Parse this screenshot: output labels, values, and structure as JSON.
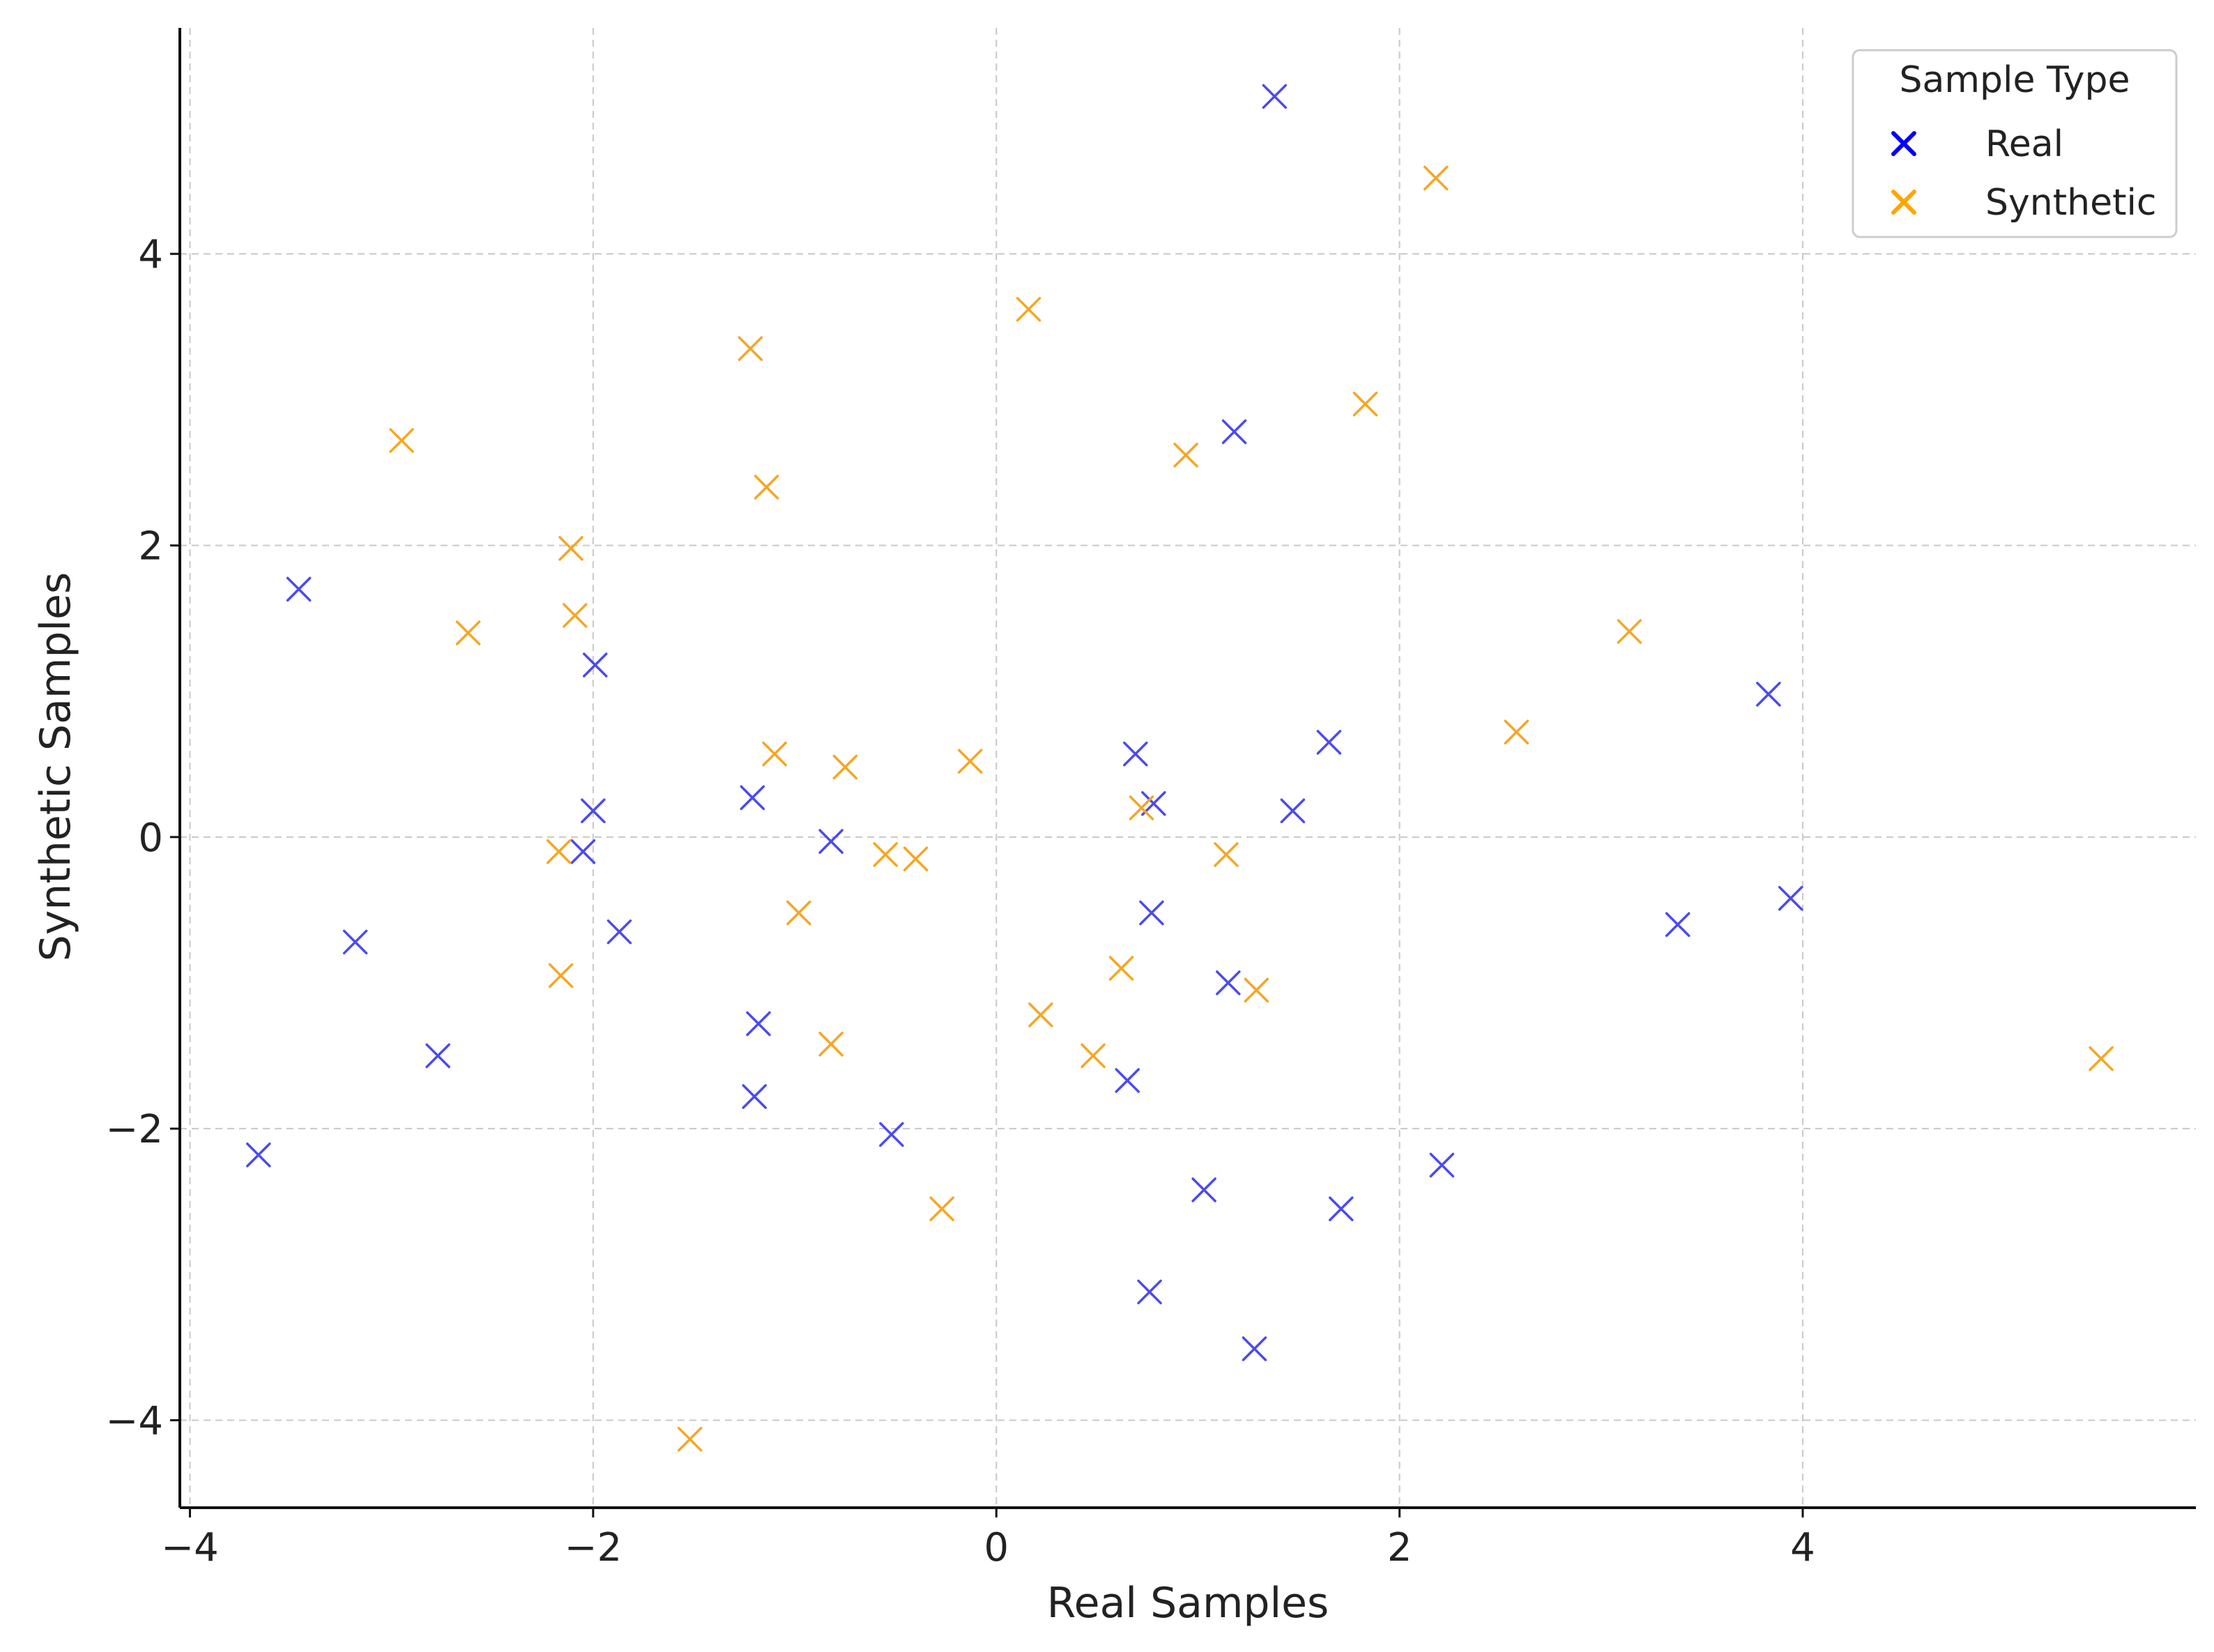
{
  "chart_data": {
    "type": "scatter",
    "title": "",
    "xlabel": "Real Samples",
    "ylabel": "Synthetic Samples",
    "xlim": [
      -4.05,
      5.95
    ],
    "ylim": [
      -4.6,
      5.55
    ],
    "xticks": [
      -4,
      -2,
      0,
      2,
      4
    ],
    "yticks": [
      -4,
      -2,
      0,
      2,
      4
    ],
    "xtick_labels": [
      "−4",
      "−2",
      "0",
      "2",
      "4"
    ],
    "ytick_labels": [
      "−4",
      "−2",
      "0",
      "2",
      "4"
    ],
    "grid": true,
    "marker": "x",
    "legend": {
      "title": "Sample Type",
      "placement": "top-right"
    },
    "series": [
      {
        "name": "Real",
        "color": "#4a4af2",
        "legend_color": "#0000ff",
        "points": [
          [
            1.38,
            5.08
          ],
          [
            1.18,
            2.78
          ],
          [
            -3.46,
            1.7
          ],
          [
            -1.99,
            1.18
          ],
          [
            3.83,
            0.98
          ],
          [
            1.65,
            0.65
          ],
          [
            0.69,
            0.57
          ],
          [
            -1.21,
            0.27
          ],
          [
            0.78,
            0.23
          ],
          [
            1.47,
            0.18
          ],
          [
            -2.0,
            0.18
          ],
          [
            -0.82,
            -0.03
          ],
          [
            -2.05,
            -0.1
          ],
          [
            3.94,
            -0.42
          ],
          [
            3.38,
            -0.6
          ],
          [
            -1.87,
            -0.65
          ],
          [
            -3.18,
            -0.72
          ],
          [
            0.77,
            -0.52
          ],
          [
            1.15,
            -1.0
          ],
          [
            -1.18,
            -1.28
          ],
          [
            -2.77,
            -1.5
          ],
          [
            0.65,
            -1.67
          ],
          [
            -1.2,
            -1.78
          ],
          [
            -0.52,
            -2.04
          ],
          [
            -3.66,
            -2.18
          ],
          [
            2.21,
            -2.25
          ],
          [
            1.03,
            -2.42
          ],
          [
            1.71,
            -2.55
          ],
          [
            0.76,
            -3.12
          ],
          [
            1.28,
            -3.51
          ]
        ]
      },
      {
        "name": "Synthetic",
        "color": "#f5a623",
        "legend_color": "#ffa500",
        "points": [
          [
            2.18,
            4.52
          ],
          [
            0.16,
            3.62
          ],
          [
            -1.22,
            3.35
          ],
          [
            1.83,
            2.97
          ],
          [
            -2.95,
            2.72
          ],
          [
            0.94,
            2.62
          ],
          [
            -1.14,
            2.4
          ],
          [
            -2.11,
            1.98
          ],
          [
            -2.09,
            1.52
          ],
          [
            -2.62,
            1.4
          ],
          [
            3.14,
            1.41
          ],
          [
            2.58,
            0.72
          ],
          [
            -1.1,
            0.57
          ],
          [
            -0.75,
            0.48
          ],
          [
            -0.13,
            0.52
          ],
          [
            0.72,
            0.2
          ],
          [
            -2.17,
            -0.1
          ],
          [
            -0.55,
            -0.12
          ],
          [
            -0.4,
            -0.15
          ],
          [
            1.14,
            -0.12
          ],
          [
            -0.98,
            -0.52
          ],
          [
            0.62,
            -0.9
          ],
          [
            1.29,
            -1.05
          ],
          [
            -2.16,
            -0.95
          ],
          [
            0.22,
            -1.22
          ],
          [
            -0.82,
            -1.42
          ],
          [
            0.48,
            -1.5
          ],
          [
            5.48,
            -1.52
          ],
          [
            -0.27,
            -2.55
          ],
          [
            -1.52,
            -4.13
          ]
        ]
      }
    ]
  }
}
